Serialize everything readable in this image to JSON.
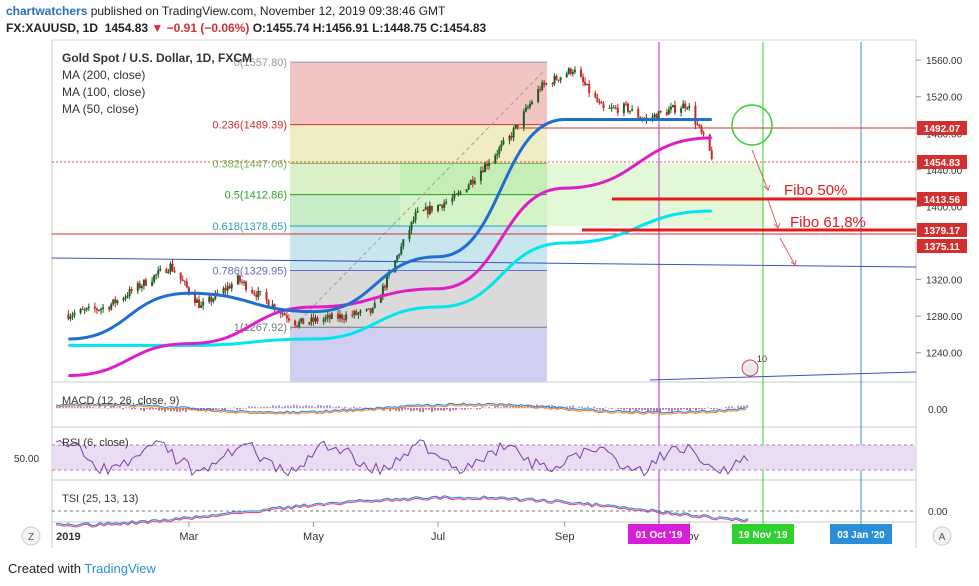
{
  "header": {
    "brand": "chartwatchers",
    "published_text": " published on TradingView.com, November 12, 2019 09:38:46 GMT",
    "symbol": "FX:XAUUSD, 1D",
    "last": "1454.83",
    "change": "▼ −0.91 (−0.06%)",
    "ohlc": "O:1455.74 H:1456.91 L:1448.75 C:1454.83"
  },
  "legend": {
    "title": "Gold Spot / U.S. Dollar, 1D, FXCM",
    "ma200": "MA (200, close)",
    "ma100": "MA (100, close)",
    "ma50": "MA (50, close)"
  },
  "fib": [
    {
      "label": "0(1557.80)",
      "price": 1557.8
    },
    {
      "label": "0.236(1489.39)",
      "price": 1489.39
    },
    {
      "label": "0.382(1447.06)",
      "price": 1447.06
    },
    {
      "label": "0.5(1412.86)",
      "price": 1412.86
    },
    {
      "label": "0.618(1378.65)",
      "price": 1378.65
    },
    {
      "label": "0.786(1329.95)",
      "price": 1329.95
    },
    {
      "label": "1(1267.92)",
      "price": 1267.92
    }
  ],
  "annotations": {
    "fibo50": "Fibo 50%",
    "fibo618": "Fibo 61,8%",
    "ten": "10"
  },
  "price_labels": {
    "p1492": "1492.07",
    "p1454": "1454.83",
    "p1413": "1413.56",
    "p1379": "1379.17",
    "p1375": "1375.11"
  },
  "date_labels": {
    "oct": "01 Oct '19",
    "nov": "19 Nov '19",
    "jan": "03 Jan '20"
  },
  "indicators": {
    "macd": "MACD (12, 26, close, 9)",
    "macd_val": "0.00",
    "rsi": "RSI (6, close)",
    "rsi_val": "50.00",
    "tsi": "TSI (25, 13, 13)",
    "tsi_val": "0.00"
  },
  "footer": {
    "created": "Created with",
    "brand": "TradingView"
  },
  "colors": {
    "candle_up": "#1b5e20",
    "candle_down": "#c62828",
    "ma200": "#00e5ee",
    "ma100": "#e01ec8",
    "ma50": "#1e6fcf",
    "red_line": "#e02020",
    "magenta_line": "#b02fc9",
    "green_line": "#2fd12f",
    "blue_line": "#3a8ee0"
  },
  "chart_data": {
    "type": "candlestick",
    "title": "Gold Spot / U.S. Dollar, 1D, FXCM",
    "x_ticks": [
      "2019",
      "Mar",
      "May",
      "Jul",
      "Sep",
      "Nov"
    ],
    "y_ticks": [
      1240,
      1280,
      1320,
      1360,
      1400,
      1440,
      1480,
      1520,
      1560
    ],
    "ylim": [
      1208,
      1582
    ],
    "path_points": [
      [
        "2019-01-01",
        1282
      ],
      [
        "2019-01-20",
        1290
      ],
      [
        "2019-02-20",
        1335
      ],
      [
        "2019-03-07",
        1290
      ],
      [
        "2019-03-25",
        1320
      ],
      [
        "2019-04-23",
        1272
      ],
      [
        "2019-05-30",
        1285
      ],
      [
        "2019-06-20",
        1390
      ],
      [
        "2019-07-10",
        1410
      ],
      [
        "2019-08-05",
        1475
      ],
      [
        "2019-08-20",
        1530
      ],
      [
        "2019-09-05",
        1550
      ],
      [
        "2019-09-20",
        1505
      ],
      [
        "2019-10-01",
        1508
      ],
      [
        "2019-10-10",
        1495
      ],
      [
        "2019-10-31",
        1512
      ],
      [
        "2019-11-12",
        1455
      ]
    ],
    "series": [
      {
        "name": "MA (200, close)",
        "points": [
          [
            "2019-01-01",
            1248
          ],
          [
            "2019-03-01",
            1248
          ],
          [
            "2019-05-01",
            1255
          ],
          [
            "2019-07-01",
            1290
          ],
          [
            "2019-09-01",
            1360
          ],
          [
            "2019-11-12",
            1395
          ]
        ]
      },
      {
        "name": "MA (100, close)",
        "points": [
          [
            "2019-01-01",
            1215
          ],
          [
            "2019-03-01",
            1250
          ],
          [
            "2019-05-01",
            1290
          ],
          [
            "2019-07-01",
            1310
          ],
          [
            "2019-09-01",
            1420
          ],
          [
            "2019-11-12",
            1475
          ]
        ]
      },
      {
        "name": "MA (50, close)",
        "points": [
          [
            "2019-01-01",
            1255
          ],
          [
            "2019-03-01",
            1305
          ],
          [
            "2019-05-01",
            1285
          ],
          [
            "2019-07-01",
            1345
          ],
          [
            "2019-09-01",
            1495
          ],
          [
            "2019-11-12",
            1495
          ]
        ]
      }
    ]
  }
}
